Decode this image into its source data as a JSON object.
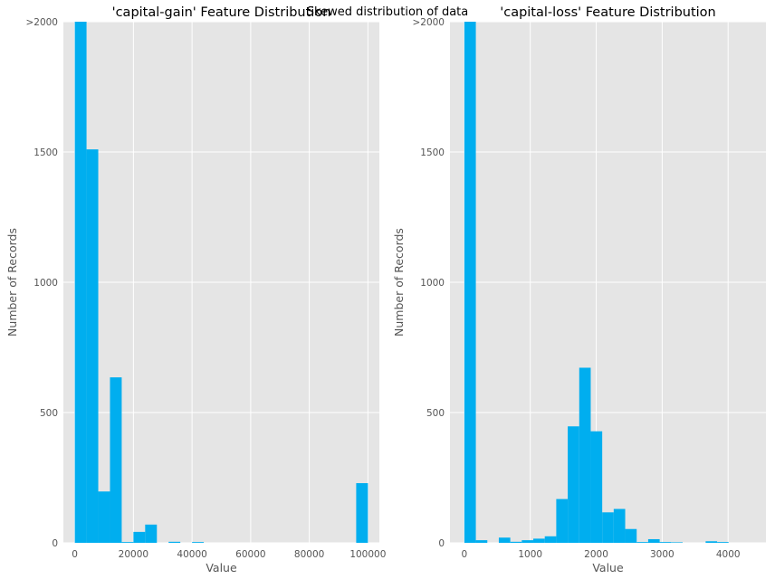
{
  "suptitle": "Skewed distribution of data",
  "bar_color": "#00aeef",
  "panel_bg": "#e5e5e5",
  "grid_color": "#ffffff",
  "chart_data": [
    {
      "type": "bar",
      "title": "'capital-gain' Feature Distribution",
      "xlabel": "Value",
      "ylabel": "Number of Records",
      "grid": true,
      "xlim": [
        -3900,
        103900
      ],
      "ylim": [
        0,
        2000
      ],
      "xticks": [
        0,
        20000,
        40000,
        60000,
        80000,
        100000
      ],
      "xtick_labels": [
        "0",
        "20000",
        "40000",
        "60000",
        "80000",
        "100000"
      ],
      "yticks": [
        0,
        500,
        1000,
        1500,
        2000
      ],
      "ytick_labels": [
        "0",
        "500",
        "1000",
        "1500",
        ">2000"
      ],
      "bin_start": 0,
      "bin_width": 3999.96,
      "values": [
        2000,
        1510,
        197,
        635,
        3,
        42,
        70,
        0,
        4,
        0,
        3,
        0,
        0,
        0,
        0,
        0,
        0,
        0,
        0,
        0,
        0,
        0,
        0,
        0,
        229
      ]
    },
    {
      "type": "bar",
      "title": "'capital-loss' Feature Distribution",
      "xlabel": "Value",
      "ylabel": "Number of Records",
      "grid": true,
      "xlim": [
        -218,
        4574
      ],
      "ylim": [
        0,
        2000
      ],
      "xticks": [
        0,
        1000,
        2000,
        3000,
        4000
      ],
      "xtick_labels": [
        "0",
        "1000",
        "2000",
        "3000",
        "4000"
      ],
      "yticks": [
        0,
        500,
        1000,
        1500,
        2000
      ],
      "ytick_labels": [
        "0",
        "500",
        "1000",
        "1500",
        ">2000"
      ],
      "bin_start": 0,
      "bin_width": 174.24,
      "values": [
        2000,
        10,
        0,
        20,
        4,
        10,
        16,
        25,
        168,
        447,
        672,
        428,
        117,
        130,
        53,
        3,
        14,
        3,
        2,
        0,
        0,
        6,
        3,
        0,
        0
      ]
    }
  ]
}
